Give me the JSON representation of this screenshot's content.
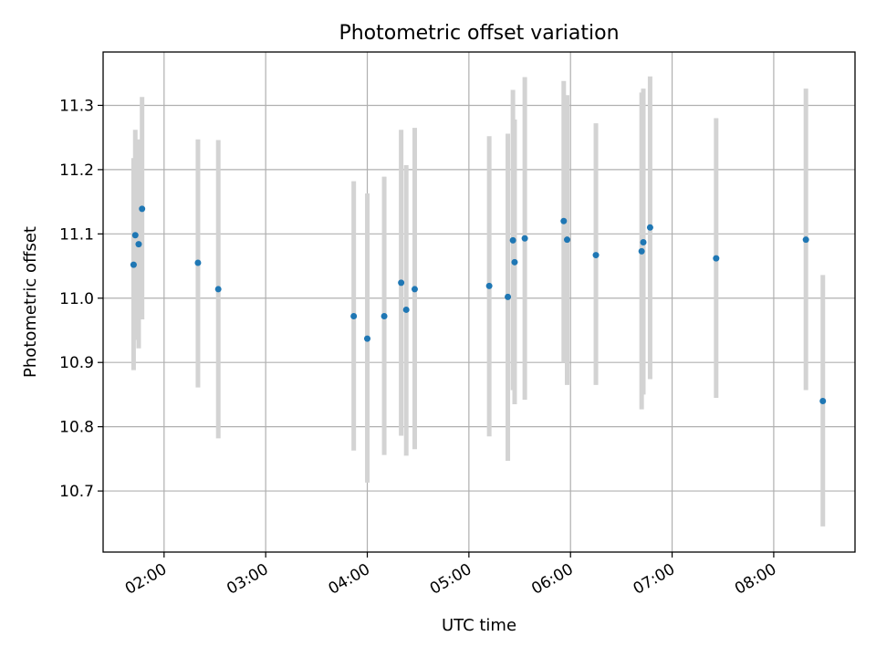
{
  "chart_data": {
    "type": "scatter",
    "title": "Photometric offset variation",
    "xlabel": "UTC time",
    "ylabel": "Photometric offset",
    "x_is_time": true,
    "xlim": [
      "01:24",
      "08:48"
    ],
    "ylim": [
      10.605,
      11.383
    ],
    "x_ticks": [
      "02:00",
      "03:00",
      "04:00",
      "05:00",
      "06:00",
      "07:00",
      "08:00"
    ],
    "y_ticks": [
      "10.7",
      "10.8",
      "10.9",
      "11.0",
      "11.1",
      "11.2",
      "11.3"
    ],
    "grid": true,
    "marker_color": "#1f77b4",
    "errorbar_color": "#d3d3d3",
    "points": [
      {
        "t": "01:42",
        "y": 11.052,
        "lo": 10.888,
        "hi": 11.218
      },
      {
        "t": "01:43",
        "y": 11.098,
        "lo": 10.935,
        "hi": 11.262
      },
      {
        "t": "01:45",
        "y": 11.084,
        "lo": 10.922,
        "hi": 11.247
      },
      {
        "t": "01:47",
        "y": 11.139,
        "lo": 10.967,
        "hi": 11.313
      },
      {
        "t": "02:20",
        "y": 11.055,
        "lo": 10.861,
        "hi": 11.247
      },
      {
        "t": "02:32",
        "y": 11.014,
        "lo": 10.782,
        "hi": 11.246
      },
      {
        "t": "03:52",
        "y": 10.972,
        "lo": 10.763,
        "hi": 11.182
      },
      {
        "t": "04:00",
        "y": 10.937,
        "lo": 10.713,
        "hi": 11.163
      },
      {
        "t": "04:10",
        "y": 10.972,
        "lo": 10.756,
        "hi": 11.189
      },
      {
        "t": "04:20",
        "y": 11.024,
        "lo": 10.786,
        "hi": 11.262
      },
      {
        "t": "04:23",
        "y": 10.982,
        "lo": 10.755,
        "hi": 11.207
      },
      {
        "t": "04:28",
        "y": 11.014,
        "lo": 10.765,
        "hi": 11.265
      },
      {
        "t": "05:12",
        "y": 11.019,
        "lo": 10.785,
        "hi": 11.252
      },
      {
        "t": "05:23",
        "y": 11.002,
        "lo": 10.747,
        "hi": 11.256
      },
      {
        "t": "05:26",
        "y": 11.09,
        "lo": 10.857,
        "hi": 11.324
      },
      {
        "t": "05:27",
        "y": 11.056,
        "lo": 10.835,
        "hi": 11.278
      },
      {
        "t": "05:33",
        "y": 11.093,
        "lo": 10.842,
        "hi": 11.344
      },
      {
        "t": "05:56",
        "y": 11.12,
        "lo": 10.9,
        "hi": 11.338
      },
      {
        "t": "05:58",
        "y": 11.091,
        "lo": 10.865,
        "hi": 11.316
      },
      {
        "t": "06:15",
        "y": 11.067,
        "lo": 10.865,
        "hi": 11.272
      },
      {
        "t": "06:42",
        "y": 11.073,
        "lo": 10.827,
        "hi": 11.32
      },
      {
        "t": "06:43",
        "y": 11.087,
        "lo": 10.85,
        "hi": 11.326
      },
      {
        "t": "06:47",
        "y": 11.11,
        "lo": 10.874,
        "hi": 11.345
      },
      {
        "t": "07:26",
        "y": 11.062,
        "lo": 10.845,
        "hi": 11.28
      },
      {
        "t": "08:19",
        "y": 11.091,
        "lo": 10.857,
        "hi": 11.326
      },
      {
        "t": "08:29",
        "y": 10.84,
        "lo": 10.645,
        "hi": 11.036
      }
    ]
  }
}
